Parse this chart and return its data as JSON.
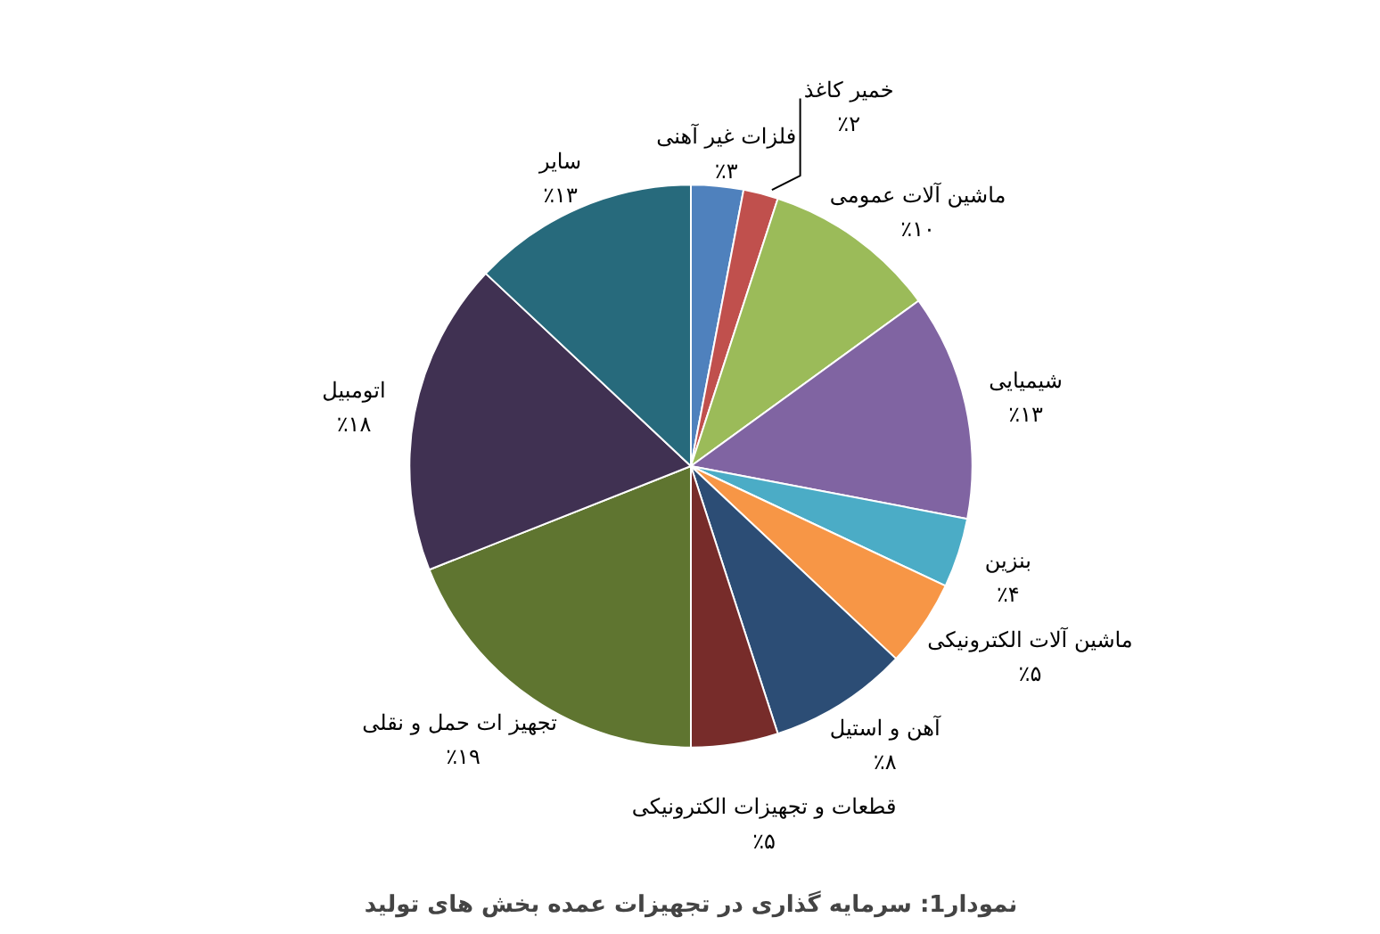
{
  "chart_data": {
    "type": "pie",
    "title": "نمودار1: سرمایه گذاری در تجهیزات عمده بخش های تولید",
    "categories": [
      "فلزات غیر آهنی",
      "خمیر کاغذ",
      "ماشین آلات عمومی",
      "شیمیایی",
      "بنزین",
      "ماشین آلات الکترونیکی",
      "آهن و استیل",
      "قطعات و تجهیزات الکترونیکی",
      "تجهیز ات حمل  و نقلی",
      "اتومبیل",
      "سایر"
    ],
    "values": [
      3,
      2,
      10,
      13,
      4,
      5,
      8,
      5,
      19,
      18,
      13
    ],
    "value_labels": [
      "٪۳",
      "٪۲",
      "٪۱۰",
      "٪۱۳",
      "٪۴",
      "٪۵",
      "٪۸",
      "٪۵",
      "٪۱۹",
      "٪۱۸",
      "٪۱۳"
    ],
    "colors": [
      "#4f81bd",
      "#c0504d",
      "#9bbb59",
      "#8064a2",
      "#4bacc6",
      "#f79646",
      "#2c4d75",
      "#772c2a",
      "#5f7530",
      "#403152",
      "#276a7c"
    ]
  }
}
